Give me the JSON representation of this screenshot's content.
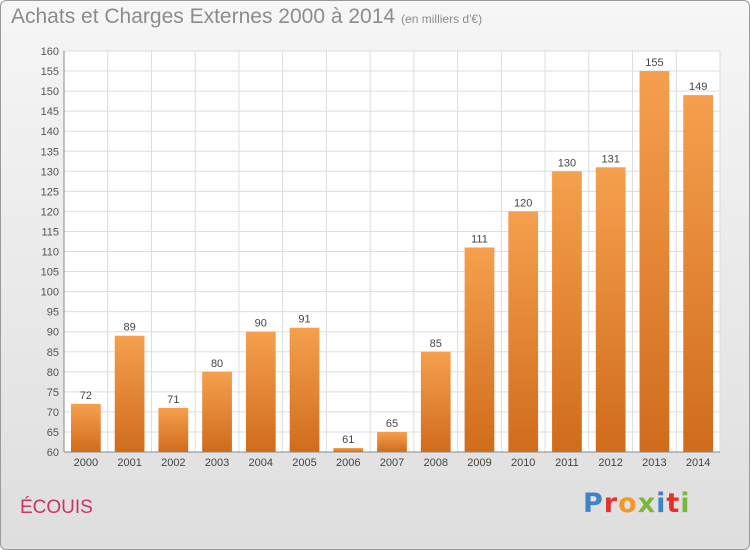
{
  "chart_data": {
    "type": "bar",
    "title": "Achats et Charges Externes 2000 à 2014",
    "subtitle": "(en milliers d'€)",
    "categories": [
      "2000",
      "2001",
      "2002",
      "2003",
      "2004",
      "2005",
      "2006",
      "2007",
      "2008",
      "2009",
      "2010",
      "2011",
      "2012",
      "2013",
      "2014"
    ],
    "values": [
      72,
      89,
      71,
      80,
      90,
      91,
      61,
      65,
      85,
      111,
      120,
      130,
      131,
      155,
      149
    ],
    "ylim": [
      60,
      160
    ],
    "ytick_step": 5,
    "grid": true,
    "bar_color_top": "#f5a04e",
    "bar_color_bottom": "#d06c1c"
  },
  "footer": {
    "commune": "ÉCOUIS",
    "logo_text": "Proxiti",
    "logo_colors": [
      "#3f82c5",
      "#e4322b",
      "#f09a25",
      "#7ab83b",
      "#3f82c5",
      "#e4322b",
      "#7ab83b"
    ]
  }
}
